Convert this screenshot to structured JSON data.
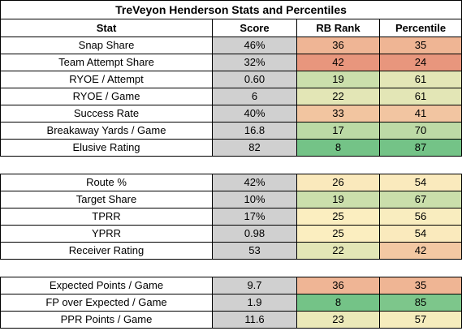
{
  "title": "TreVeyon Henderson Stats and Percentiles",
  "headers": [
    "Stat",
    "Score",
    "RB Rank",
    "Percentile"
  ],
  "colors": {
    "score_bg": "#d0d0d0",
    "scale_low": "#e8967d",
    "scale_mid": "#fbeec0",
    "scale_high": "#74c387"
  },
  "sections": [
    {
      "rows": [
        {
          "stat": "Snap Share",
          "score": "46%",
          "rank": "36",
          "percentile": "35"
        },
        {
          "stat": "Team Attempt Share",
          "score": "32%",
          "rank": "42",
          "percentile": "24"
        },
        {
          "stat": "RYOE / Attempt",
          "score": "0.60",
          "rank": "19",
          "percentile": "61"
        },
        {
          "stat": "RYOE / Game",
          "score": "6",
          "rank": "22",
          "percentile": "61"
        },
        {
          "stat": "Success Rate",
          "score": "40%",
          "rank": "33",
          "percentile": "41"
        },
        {
          "stat": "Breakaway Yards / Game",
          "score": "16.8",
          "rank": "17",
          "percentile": "70"
        },
        {
          "stat": "Elusive Rating",
          "score": "82",
          "rank": "8",
          "percentile": "87"
        }
      ]
    },
    {
      "rows": [
        {
          "stat": "Route %",
          "score": "42%",
          "rank": "26",
          "percentile": "54"
        },
        {
          "stat": "Target Share",
          "score": "10%",
          "rank": "19",
          "percentile": "67"
        },
        {
          "stat": "TPRR",
          "score": "17%",
          "rank": "25",
          "percentile": "56"
        },
        {
          "stat": "YPRR",
          "score": "0.98",
          "rank": "25",
          "percentile": "54"
        },
        {
          "stat": "Receiver Rating",
          "score": "53",
          "rank": "22",
          "percentile": "42"
        }
      ]
    },
    {
      "rows": [
        {
          "stat": "Expected Points / Game",
          "score": "9.7",
          "rank": "36",
          "percentile": "35"
        },
        {
          "stat": "FP over Expected / Game",
          "score": "1.9",
          "rank": "8",
          "percentile": "85"
        },
        {
          "stat": "PPR Points / Game",
          "score": "11.6",
          "rank": "23",
          "percentile": "57"
        }
      ]
    }
  ]
}
